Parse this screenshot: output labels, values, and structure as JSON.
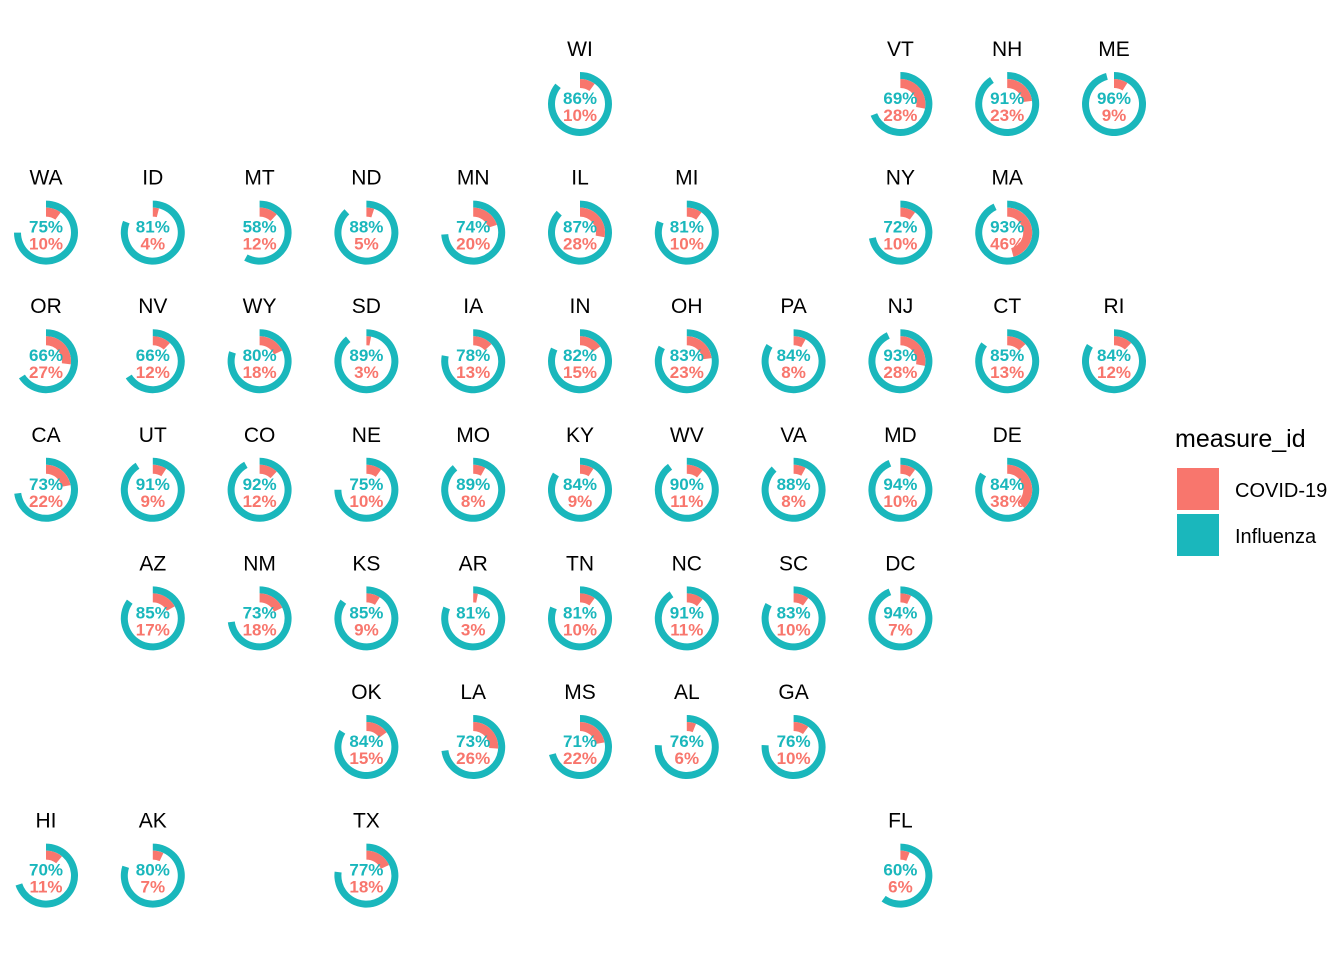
{
  "colors": {
    "covid": "#F8766D",
    "influenza": "#1AB7BC"
  },
  "legend": {
    "title": "measure_id",
    "items": [
      {
        "label": "COVID-19",
        "color": "#F8766D"
      },
      {
        "label": "Influenza",
        "color": "#1AB7BC"
      }
    ]
  },
  "chart_data": {
    "type": "donut-tile-map",
    "series": [
      {
        "name": "COVID-19",
        "key": "covid"
      },
      {
        "name": "Influenza",
        "key": "flu"
      }
    ],
    "states": [
      {
        "state": "WI",
        "row": 0,
        "col": 5,
        "flu": 86,
        "covid": 10
      },
      {
        "state": "VT",
        "row": 0,
        "col": 8,
        "flu": 69,
        "covid": 28
      },
      {
        "state": "NH",
        "row": 0,
        "col": 9,
        "flu": 91,
        "covid": 23
      },
      {
        "state": "ME",
        "row": 0,
        "col": 10,
        "flu": 96,
        "covid": 9
      },
      {
        "state": "WA",
        "row": 1,
        "col": 0,
        "flu": 75,
        "covid": 10
      },
      {
        "state": "ID",
        "row": 1,
        "col": 1,
        "flu": 81,
        "covid": 4
      },
      {
        "state": "MT",
        "row": 1,
        "col": 2,
        "flu": 58,
        "covid": 12
      },
      {
        "state": "ND",
        "row": 1,
        "col": 3,
        "flu": 88,
        "covid": 5
      },
      {
        "state": "MN",
        "row": 1,
        "col": 4,
        "flu": 74,
        "covid": 20
      },
      {
        "state": "IL",
        "row": 1,
        "col": 5,
        "flu": 87,
        "covid": 28
      },
      {
        "state": "MI",
        "row": 1,
        "col": 6,
        "flu": 81,
        "covid": 10
      },
      {
        "state": "NY",
        "row": 1,
        "col": 8,
        "flu": 72,
        "covid": 10
      },
      {
        "state": "MA",
        "row": 1,
        "col": 9,
        "flu": 93,
        "covid": 46
      },
      {
        "state": "OR",
        "row": 2,
        "col": 0,
        "flu": 66,
        "covid": 27
      },
      {
        "state": "NV",
        "row": 2,
        "col": 1,
        "flu": 66,
        "covid": 12
      },
      {
        "state": "WY",
        "row": 2,
        "col": 2,
        "flu": 80,
        "covid": 18
      },
      {
        "state": "SD",
        "row": 2,
        "col": 3,
        "flu": 89,
        "covid": 3
      },
      {
        "state": "IA",
        "row": 2,
        "col": 4,
        "flu": 78,
        "covid": 13
      },
      {
        "state": "IN",
        "row": 2,
        "col": 5,
        "flu": 82,
        "covid": 15
      },
      {
        "state": "OH",
        "row": 2,
        "col": 6,
        "flu": 83,
        "covid": 23
      },
      {
        "state": "PA",
        "row": 2,
        "col": 7,
        "flu": 84,
        "covid": 8
      },
      {
        "state": "NJ",
        "row": 2,
        "col": 8,
        "flu": 93,
        "covid": 28
      },
      {
        "state": "CT",
        "row": 2,
        "col": 9,
        "flu": 85,
        "covid": 13
      },
      {
        "state": "RI",
        "row": 2,
        "col": 10,
        "flu": 84,
        "covid": 12
      },
      {
        "state": "CA",
        "row": 3,
        "col": 0,
        "flu": 73,
        "covid": 22
      },
      {
        "state": "UT",
        "row": 3,
        "col": 1,
        "flu": 91,
        "covid": 9
      },
      {
        "state": "CO",
        "row": 3,
        "col": 2,
        "flu": 92,
        "covid": 12
      },
      {
        "state": "NE",
        "row": 3,
        "col": 3,
        "flu": 75,
        "covid": 10
      },
      {
        "state": "MO",
        "row": 3,
        "col": 4,
        "flu": 89,
        "covid": 8
      },
      {
        "state": "KY",
        "row": 3,
        "col": 5,
        "flu": 84,
        "covid": 9
      },
      {
        "state": "WV",
        "row": 3,
        "col": 6,
        "flu": 90,
        "covid": 11
      },
      {
        "state": "VA",
        "row": 3,
        "col": 7,
        "flu": 88,
        "covid": 8
      },
      {
        "state": "MD",
        "row": 3,
        "col": 8,
        "flu": 94,
        "covid": 10
      },
      {
        "state": "DE",
        "row": 3,
        "col": 9,
        "flu": 84,
        "covid": 38
      },
      {
        "state": "AZ",
        "row": 4,
        "col": 1,
        "flu": 85,
        "covid": 17
      },
      {
        "state": "NM",
        "row": 4,
        "col": 2,
        "flu": 73,
        "covid": 18
      },
      {
        "state": "KS",
        "row": 4,
        "col": 3,
        "flu": 85,
        "covid": 9
      },
      {
        "state": "AR",
        "row": 4,
        "col": 4,
        "flu": 81,
        "covid": 3
      },
      {
        "state": "TN",
        "row": 4,
        "col": 5,
        "flu": 81,
        "covid": 10
      },
      {
        "state": "NC",
        "row": 4,
        "col": 6,
        "flu": 91,
        "covid": 11
      },
      {
        "state": "SC",
        "row": 4,
        "col": 7,
        "flu": 83,
        "covid": 10
      },
      {
        "state": "DC",
        "row": 4,
        "col": 8,
        "flu": 94,
        "covid": 7
      },
      {
        "state": "OK",
        "row": 5,
        "col": 3,
        "flu": 84,
        "covid": 15
      },
      {
        "state": "LA",
        "row": 5,
        "col": 4,
        "flu": 73,
        "covid": 26
      },
      {
        "state": "MS",
        "row": 5,
        "col": 5,
        "flu": 71,
        "covid": 22
      },
      {
        "state": "AL",
        "row": 5,
        "col": 6,
        "flu": 76,
        "covid": 6
      },
      {
        "state": "GA",
        "row": 5,
        "col": 7,
        "flu": 76,
        "covid": 10
      },
      {
        "state": "HI",
        "row": 6,
        "col": 0,
        "flu": 70,
        "covid": 11
      },
      {
        "state": "AK",
        "row": 6,
        "col": 1,
        "flu": 80,
        "covid": 7
      },
      {
        "state": "TX",
        "row": 6,
        "col": 3,
        "flu": 77,
        "covid": 18
      },
      {
        "state": "FL",
        "row": 6,
        "col": 8,
        "flu": 60,
        "covid": 6
      }
    ]
  }
}
